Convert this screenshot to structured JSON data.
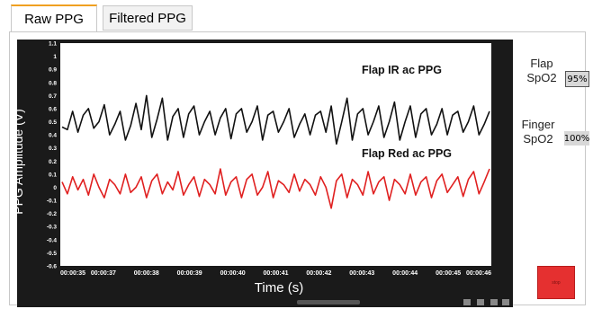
{
  "tabs": [
    {
      "label": "Raw PPG",
      "active": true
    },
    {
      "label": "Filtered PPG",
      "active": false
    }
  ],
  "side": {
    "flap_label_1": "Flap",
    "flap_label_2": "SpO2",
    "flap_value": "95%",
    "finger_label_1": "Finger",
    "finger_label_2": "SpO2",
    "finger_value": "100%"
  },
  "stop_button": {
    "label": "stop",
    "color": "#e53030"
  },
  "colors": {
    "plot_bg": "#ffffff",
    "frame": "#1a1a1a",
    "ir": "#111111",
    "red": "#e02020"
  },
  "chart_data": {
    "type": "line",
    "ylabel": "PPG Amplitude (V)",
    "xlabel": "Time (s)",
    "ylim": [
      -0.6,
      1.1
    ],
    "yticks": [
      "1.1",
      "1",
      "0.9",
      "0.8",
      "0.7",
      "0.6",
      "0.5",
      "0.4",
      "0.3",
      "0.2",
      "0.1",
      "0",
      "-0.1",
      "-0.2",
      "-0.3",
      "-0.4",
      "-0.5",
      "-0.6"
    ],
    "xticks": [
      "00:00:35",
      "00:00:37",
      "00:00:38",
      "00:00:39",
      "00:00:40",
      "00:00:41",
      "00:00:42",
      "00:00:43",
      "00:00:44",
      "00:00:45",
      "00:00:46"
    ],
    "annotations": [
      "Flap IR ac PPG",
      "Flap Red ac PPG"
    ],
    "series": [
      {
        "name": "Flap IR ac PPG",
        "color": "#111111",
        "values": [
          0.46,
          0.44,
          0.58,
          0.42,
          0.55,
          0.6,
          0.45,
          0.5,
          0.63,
          0.4,
          0.48,
          0.58,
          0.36,
          0.47,
          0.64,
          0.44,
          0.7,
          0.38,
          0.52,
          0.68,
          0.36,
          0.54,
          0.6,
          0.38,
          0.56,
          0.62,
          0.4,
          0.5,
          0.58,
          0.4,
          0.53,
          0.6,
          0.37,
          0.56,
          0.6,
          0.42,
          0.5,
          0.62,
          0.36,
          0.55,
          0.58,
          0.42,
          0.5,
          0.6,
          0.38,
          0.48,
          0.56,
          0.4,
          0.55,
          0.58,
          0.42,
          0.62,
          0.33,
          0.5,
          0.68,
          0.36,
          0.56,
          0.6,
          0.4,
          0.5,
          0.62,
          0.38,
          0.5,
          0.65,
          0.36,
          0.5,
          0.62,
          0.38,
          0.56,
          0.6,
          0.4,
          0.48,
          0.6,
          0.4,
          0.55,
          0.58,
          0.42,
          0.5,
          0.62,
          0.4,
          0.48,
          0.58
        ]
      },
      {
        "name": "Flap Red ac PPG",
        "color": "#e02020",
        "values": [
          0.04,
          -0.05,
          0.08,
          -0.02,
          0.06,
          -0.06,
          0.1,
          0.0,
          -0.08,
          0.06,
          0.02,
          -0.05,
          0.1,
          -0.04,
          0.0,
          0.08,
          -0.08,
          0.05,
          0.1,
          -0.05,
          0.04,
          -0.02,
          0.12,
          -0.06,
          0.02,
          0.08,
          -0.07,
          0.06,
          0.02,
          -0.05,
          0.14,
          -0.06,
          0.04,
          0.08,
          -0.08,
          0.06,
          0.1,
          -0.06,
          0.0,
          0.12,
          -0.08,
          0.05,
          0.02,
          -0.04,
          0.1,
          -0.03,
          0.06,
          0.02,
          -0.06,
          0.08,
          0.0,
          -0.16,
          0.05,
          0.1,
          -0.08,
          0.06,
          0.02,
          -0.06,
          0.12,
          -0.05,
          0.04,
          0.08,
          -0.1,
          0.06,
          0.02,
          -0.05,
          0.1,
          -0.06,
          0.04,
          0.08,
          -0.08,
          0.05,
          0.1,
          -0.04,
          0.02,
          0.08,
          -0.07,
          0.06,
          0.12,
          -0.05,
          0.04,
          0.14
        ]
      }
    ]
  }
}
